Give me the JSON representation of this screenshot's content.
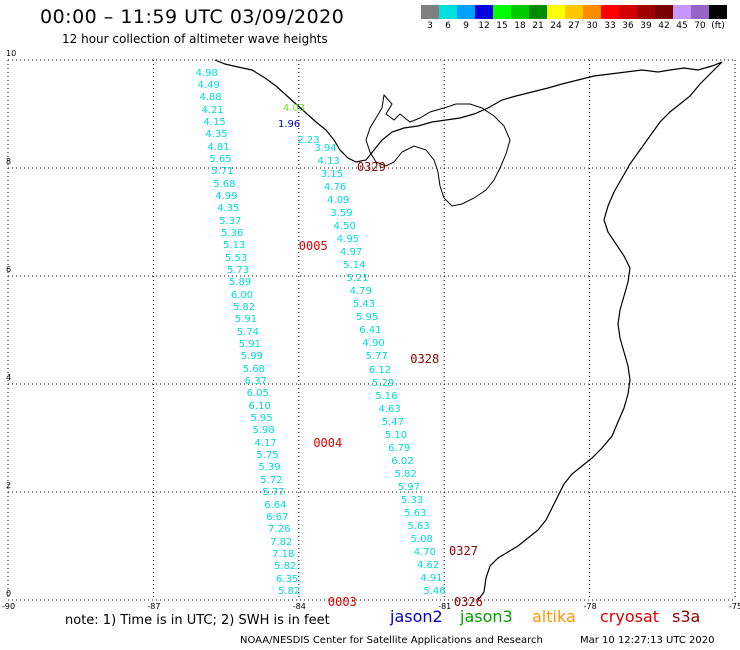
{
  "header": {
    "title": "00:00 – 11:59 UTC 03/09/2020",
    "subtitle": "12 hour collection of altimeter wave heights"
  },
  "scale": {
    "colors": [
      "#808080",
      "#00e0e0",
      "#00a0ff",
      "#0000e0",
      "#00ff00",
      "#00c800",
      "#008c00",
      "#ffff00",
      "#ffc800",
      "#ff8c00",
      "#ff0000",
      "#d20000",
      "#a00000",
      "#780000",
      "#c896ff",
      "#9664c8",
      "#000000"
    ],
    "labels": [
      "3",
      "6",
      "9",
      "12",
      "15",
      "18",
      "21",
      "24",
      "27",
      "30",
      "33",
      "36",
      "39",
      "42",
      "45",
      "70",
      "(ft)"
    ]
  },
  "axes": {
    "x_ticks": [
      "-90",
      "-87",
      "-84",
      "-81",
      "-78",
      "-75"
    ],
    "y_ticks": [
      "0",
      "2",
      "4",
      "6",
      "8",
      "10"
    ]
  },
  "chart_data": {
    "type": "scatter",
    "xlim": [
      -90,
      -75
    ],
    "ylim": [
      0,
      10
    ],
    "grid": true,
    "tracks": [
      {
        "satellite": "jason3",
        "color": "#00dcdc",
        "start_lon": -85.9,
        "start_lat": 9.75,
        "end_lon": -84.2,
        "end_lat": 0.15,
        "swh": [
          "4.98",
          "4.49",
          "4.88",
          "4.21",
          "4.15",
          "4.35",
          "4.81",
          "5.65",
          "5.71",
          "5.68",
          "4.99",
          "4.35",
          "5.37",
          "5.36",
          "5.13",
          "5.53",
          "5.73",
          "5.89",
          "6.00",
          "5.82",
          "5.91",
          "5.74",
          "5.91",
          "5.99",
          "5.68",
          "6.37",
          "6.05",
          "6.10",
          "5.95",
          "5.98",
          "4.17",
          "5.75",
          "5.39",
          "5.72",
          "5.77",
          "6.64",
          "6.67",
          "7.26",
          "7.82",
          "7.18",
          "5.82",
          "6.35",
          "5.82"
        ]
      },
      {
        "satellite": "jason3",
        "color": "#00dcdc",
        "start_lon": -83.45,
        "start_lat": 8.35,
        "end_lon": -81.2,
        "end_lat": 0.15,
        "swh": [
          "3.94",
          "4.13",
          "3.15",
          "4.76",
          "4.09",
          "3.59",
          "4.50",
          "4.95",
          "4.97",
          "5.14",
          "5.21",
          "4.79",
          "5.43",
          "5.95",
          "6.41",
          "4.90",
          "5.77",
          "6.12",
          "5.29",
          "5.16",
          "4.63",
          "5.47",
          "5.10",
          "6.79",
          "6.02",
          "5.82",
          "5.97",
          "5.33",
          "5.63",
          "5.63",
          "5.08",
          "4.70",
          "4.62",
          "4.91",
          "5.46"
        ]
      }
    ],
    "other_points": [
      {
        "text": "4.03",
        "satellite": "altika",
        "color": "#78dc3c",
        "lon": -84.1,
        "lat": 9.1
      },
      {
        "text": "1.96",
        "satellite": "jason2",
        "color": "#0000c8",
        "lon": -84.2,
        "lat": 8.8
      },
      {
        "text": "2.23",
        "satellite": "jason3",
        "color": "#00dcdc",
        "lon": -83.8,
        "lat": 8.5
      }
    ],
    "time_labels": [
      {
        "text": "0005",
        "color": "#e00000",
        "lon": -84.0,
        "lat": 6.6
      },
      {
        "text": "0004",
        "color": "#e00000",
        "lon": -83.7,
        "lat": 2.95
      },
      {
        "text": "0003",
        "color": "#e00000",
        "lon": -83.4,
        "lat": 0.0
      },
      {
        "text": "0329",
        "color": "#900000",
        "lon": -82.8,
        "lat": 8.05
      },
      {
        "text": "0328",
        "color": "#900000",
        "lon": -81.7,
        "lat": 4.5
      },
      {
        "text": "0327",
        "color": "#900000",
        "lon": -80.9,
        "lat": 0.95
      },
      {
        "text": "0326",
        "color": "#900000",
        "lon": -80.8,
        "lat": 0.0
      }
    ]
  },
  "footer": {
    "note": "note:  1) Time is in UTC;  2) SWH is in feet",
    "legend": [
      {
        "name": "jason2",
        "color": "#0000c8"
      },
      {
        "name": "jason3",
        "color": "#00a000"
      },
      {
        "name": "altika",
        "color": "#ff9600"
      },
      {
        "name": "cryosat",
        "color": "#e00000"
      },
      {
        "name": "s3a",
        "color": "#900000"
      }
    ],
    "credit": "NOAA/NESDIS Center for Satellite Applications and Research",
    "timestamp": "Mar 10 12:27:13 UTC 2020"
  }
}
